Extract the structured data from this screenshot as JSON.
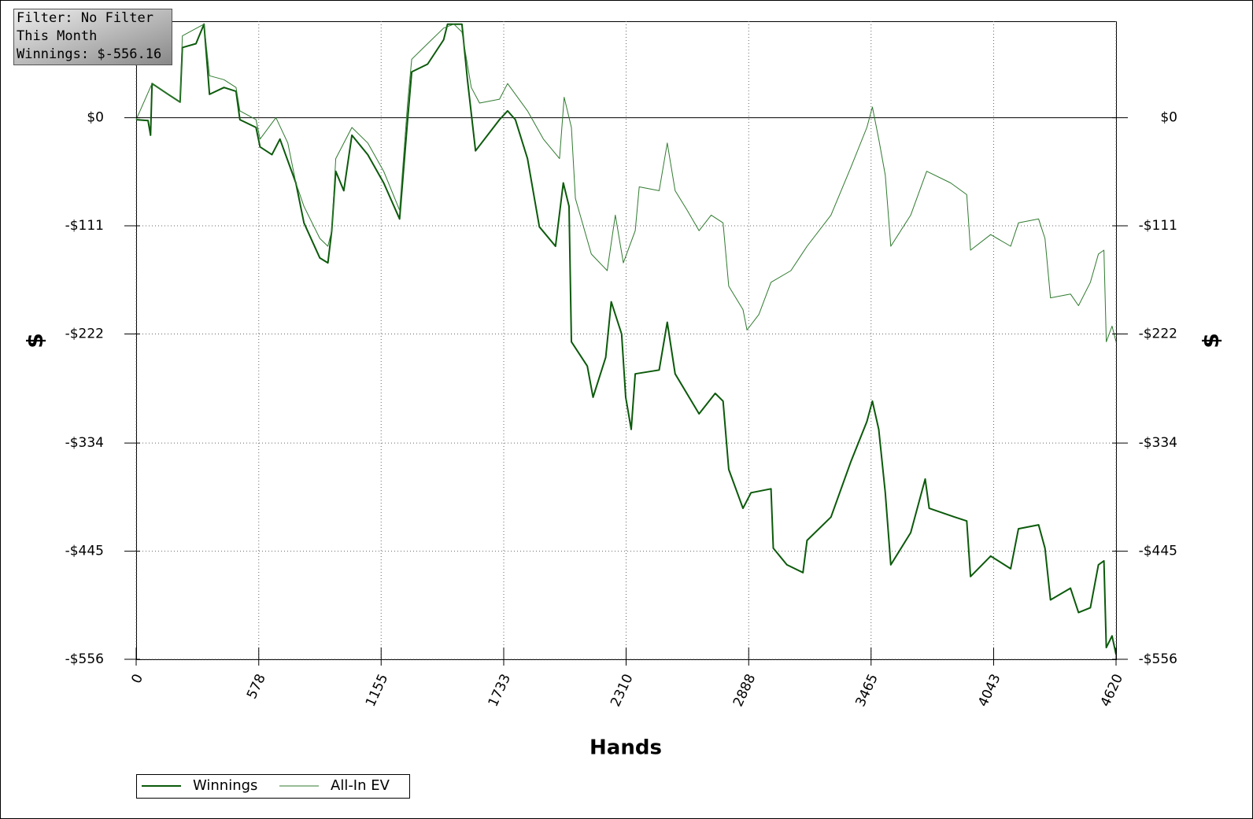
{
  "chart_data": {
    "type": "line",
    "annotations": [
      "Filter: No Filter",
      "This Month",
      "Winnings: $-556.16"
    ],
    "x_label": "Hands",
    "y_label": "$",
    "xlim": [
      0,
      4620
    ],
    "xticks": [
      0,
      578,
      1155,
      1733,
      2310,
      2888,
      3465,
      4043,
      4620
    ],
    "ylim": [
      -556,
      99
    ],
    "yticks": [
      {
        "value": -556,
        "label": "-$556"
      },
      {
        "value": -445,
        "label": "-$445"
      },
      {
        "value": -334,
        "label": "-$334"
      },
      {
        "value": -222,
        "label": "-$222"
      },
      {
        "value": -111,
        "label": "-$111"
      },
      {
        "value": 0,
        "label": "$0"
      }
    ],
    "grid": true,
    "legend": "bottom-left",
    "series": [
      {
        "name": "Winnings",
        "color": "#0b5a0b",
        "x": [
          0,
          56,
          68,
          75,
          151,
          207,
          218,
          282,
          320,
          346,
          414,
          471,
          489,
          565,
          584,
          640,
          678,
          753,
          791,
          866,
          904,
          922,
          941,
          979,
          1017,
          1092,
          1167,
          1242,
          1280,
          1299,
          1374,
          1450,
          1468,
          1536,
          1562,
          1600,
          1713,
          1751,
          1788,
          1845,
          1901,
          1977,
          2014,
          2041,
          2052,
          2127,
          2154,
          2214,
          2240,
          2289,
          2308,
          2334,
          2353,
          2466,
          2504,
          2541,
          2654,
          2730,
          2767,
          2794,
          2861,
          2899,
          2993,
          3004,
          3068,
          3144,
          3163,
          3276,
          3370,
          3445,
          3471,
          3501,
          3532,
          3558,
          3652,
          3720,
          3739,
          3859,
          3916,
          3934,
          4029,
          4123,
          4160,
          4255,
          4285,
          4311,
          4405,
          4443,
          4499,
          4537,
          4563,
          4574,
          4601,
          4620
        ],
        "values": [
          -2,
          -3,
          -18,
          35,
          24,
          16,
          72,
          76,
          96,
          24,
          31,
          27,
          -2,
          -10,
          -30,
          -38,
          -22,
          -67,
          -108,
          -144,
          -149,
          -116,
          -55,
          -75,
          -18,
          -38,
          -67,
          -104,
          -2,
          47,
          55,
          80,
          96,
          96,
          39,
          -34,
          -2,
          7,
          -2,
          -42,
          -112,
          -132,
          -67,
          -91,
          -230,
          -255,
          -287,
          -246,
          -189,
          -222,
          -287,
          -320,
          -263,
          -259,
          -210,
          -263,
          -304,
          -283,
          -291,
          -361,
          -401,
          -385,
          -381,
          -442,
          -459,
          -467,
          -434,
          -410,
          -353,
          -312,
          -291,
          -320,
          -385,
          -459,
          -426,
          -371,
          -401,
          -410,
          -414,
          -471,
          -450,
          -463,
          -422,
          -418,
          -442,
          -495,
          -483,
          -508,
          -503,
          -459,
          -455,
          -544,
          -532,
          -551
        ]
      },
      {
        "name": "All-In EV",
        "color": "#2f7a2f",
        "x": [
          0,
          75,
          207,
          218,
          320,
          346,
          414,
          471,
          489,
          565,
          584,
          659,
          715,
          753,
          791,
          866,
          904,
          922,
          941,
          1017,
          1092,
          1167,
          1242,
          1280,
          1299,
          1374,
          1450,
          1498,
          1536,
          1580,
          1619,
          1713,
          1751,
          1845,
          1920,
          1996,
          2018,
          2052,
          2071,
          2146,
          2221,
          2259,
          2297,
          2353,
          2372,
          2466,
          2504,
          2541,
          2598,
          2654,
          2711,
          2767,
          2794,
          2861,
          2880,
          2936,
          2993,
          3087,
          3163,
          3276,
          3370,
          3445,
          3471,
          3501,
          3532,
          3558,
          3652,
          3727,
          3840,
          3916,
          3934,
          4029,
          4123,
          4160,
          4255,
          4285,
          4311,
          4405,
          4443,
          4499,
          4537,
          4563,
          4574,
          4601,
          4620
        ],
        "values": [
          -2,
          35,
          16,
          84,
          96,
          43,
          39,
          31,
          7,
          -2,
          -22,
          0,
          -26,
          -67,
          -91,
          -124,
          -132,
          -116,
          -42,
          -10,
          -26,
          -55,
          -95,
          15,
          60,
          76,
          92,
          96,
          88,
          31,
          15,
          19,
          35,
          7,
          -22,
          -42,
          21,
          -10,
          -83,
          -140,
          -157,
          -100,
          -149,
          -116,
          -71,
          -75,
          -26,
          -75,
          -95,
          -116,
          -100,
          -108,
          -173,
          -197,
          -218,
          -202,
          -169,
          -157,
          -132,
          -100,
          -51,
          -10,
          11,
          -22,
          -59,
          -132,
          -100,
          -55,
          -67,
          -79,
          -136,
          -120,
          -132,
          -108,
          -104,
          -124,
          -185,
          -181,
          -193,
          -169,
          -140,
          -136,
          -230,
          -214,
          -230
        ]
      }
    ]
  }
}
